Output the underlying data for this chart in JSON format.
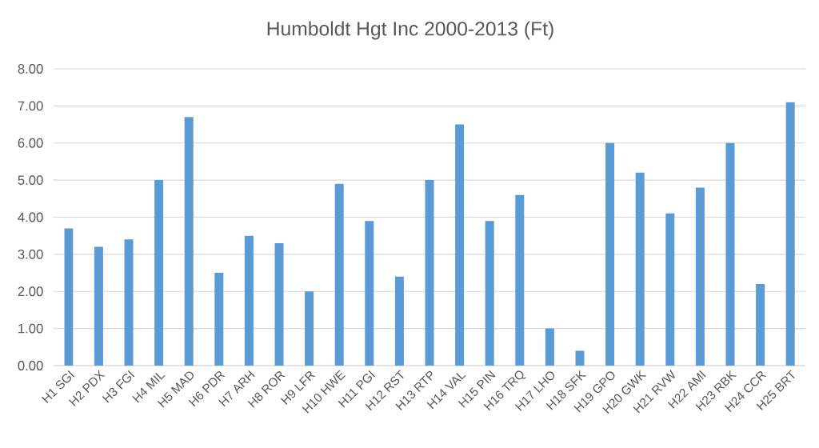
{
  "chart_data": {
    "type": "bar",
    "title": "Humboldt Hgt Inc 2000-2013 (Ft)",
    "categories": [
      "H1 SGI",
      "H2 PDX",
      "H3 FGI",
      "H4 MIL",
      "H5 MAD",
      "H6 PDR",
      "H7 ARH",
      "H8 ROR",
      "H9 LFR",
      "H10 HWE",
      "H11 PGI",
      "H12 RST",
      "H13 RTP",
      "H14 VAL",
      "H15 PIN",
      "H16 TRQ",
      "H17 LHO",
      "H18 SFK",
      "H19 GPO",
      "H20 GWK",
      "H21 RVW",
      "H22 AMI",
      "H23 RBK",
      "H24 CCR",
      "H25 BRT"
    ],
    "values": [
      3.7,
      3.2,
      3.4,
      5.0,
      6.7,
      2.5,
      3.5,
      3.3,
      2.0,
      4.9,
      3.9,
      2.4,
      5.0,
      6.5,
      3.9,
      4.6,
      1.0,
      0.4,
      6.0,
      5.2,
      4.1,
      4.8,
      6.0,
      2.2,
      7.1
    ],
    "color": "#5b9bd5",
    "ylim": [
      0,
      8
    ],
    "yticks": [
      {
        "value": 0,
        "label": "0.00"
      },
      {
        "value": 1,
        "label": "1.00"
      },
      {
        "value": 2,
        "label": "2.00"
      },
      {
        "value": 3,
        "label": "3.00"
      },
      {
        "value": 4,
        "label": "4.00"
      },
      {
        "value": 5,
        "label": "5.00"
      },
      {
        "value": 6,
        "label": "6.00"
      },
      {
        "value": 7,
        "label": "7.00"
      },
      {
        "value": 8,
        "label": "8.00"
      }
    ],
    "grid": "y"
  }
}
